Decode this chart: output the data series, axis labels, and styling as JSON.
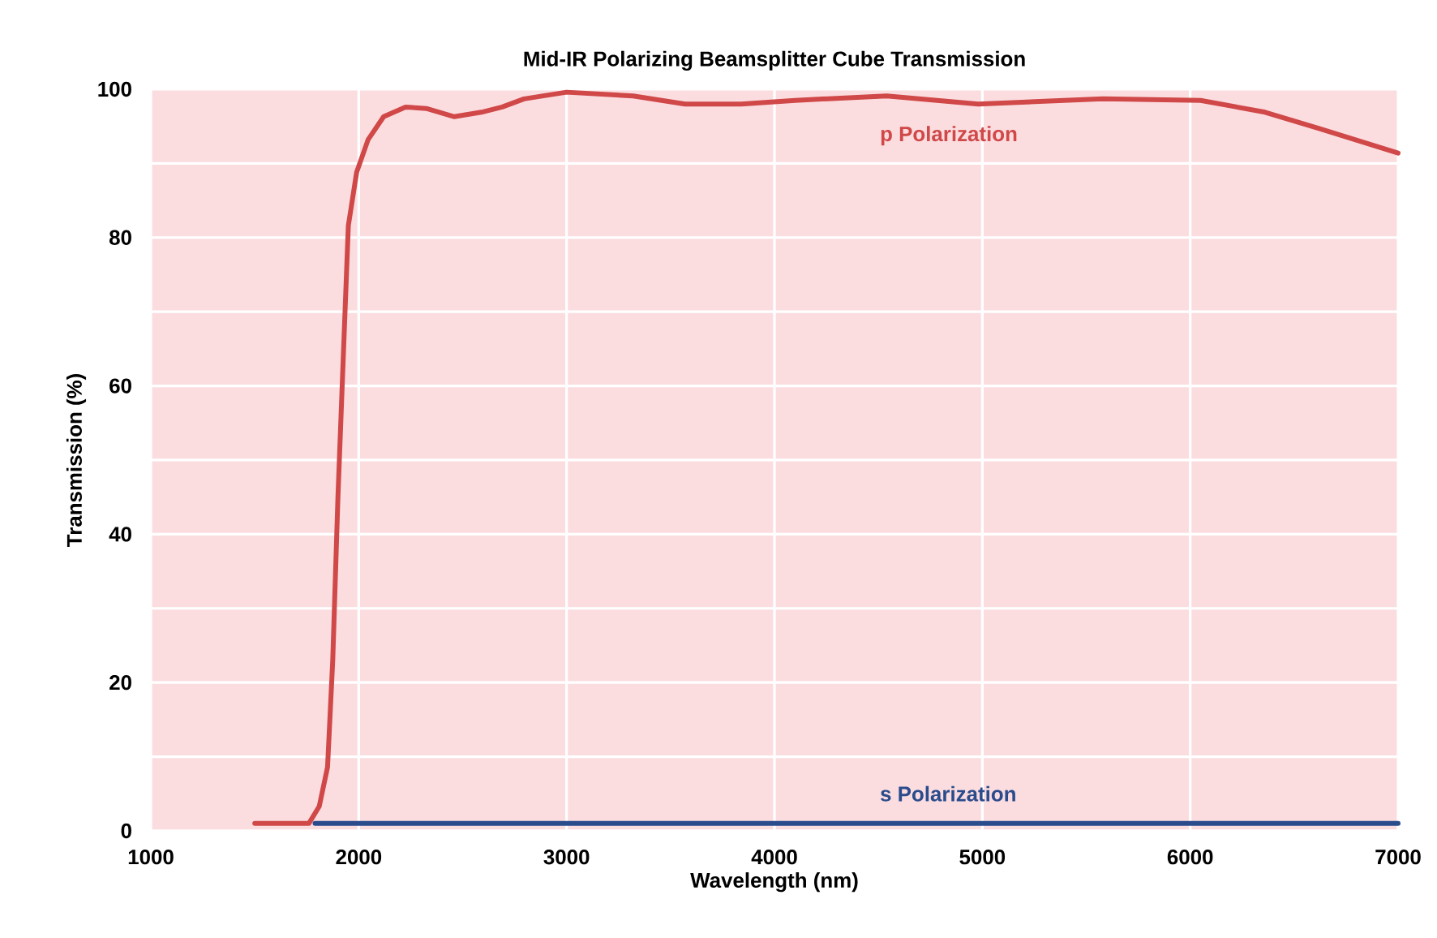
{
  "chart_data": {
    "type": "line",
    "title": "Mid-IR Polarizing Beamsplitter Cube Transmission",
    "xlabel": "Wavelength (nm)",
    "ylabel": "Transmission (%)",
    "xlim": [
      1000,
      7000
    ],
    "ylim": [
      0,
      100
    ],
    "xticks": [
      1000,
      2000,
      3000,
      4000,
      5000,
      6000,
      7000
    ],
    "yticks": [
      0,
      {
        "value": 10,
        "label": null
      },
      20,
      {
        "value": 30,
        "label": null
      },
      40,
      {
        "value": 50,
        "label": null
      },
      60,
      {
        "value": 70,
        "label": null
      },
      80,
      {
        "value": 90,
        "label": null
      },
      100
    ],
    "grid": true,
    "marker": "none",
    "line_style": "solid",
    "series": [
      {
        "name": "p Polarization",
        "color": "#d04848",
        "x": [
          1500,
          1760,
          1810,
          1850,
          1875,
          1900,
          1930,
          1950,
          1990,
          2045,
          2120,
          2225,
          2325,
          2460,
          2590,
          2690,
          2795,
          3000,
          3320,
          3570,
          3840,
          4100,
          4540,
          4980,
          5580,
          6050,
          6360,
          6620,
          7000
        ],
        "values": [
          1,
          1,
          3.3,
          8.6,
          23,
          45,
          67,
          81.6,
          88.8,
          93.2,
          96.3,
          97.6,
          97.4,
          96.3,
          96.9,
          97.6,
          98.7,
          99.6,
          99.1,
          98,
          98,
          98.5,
          99.1,
          98,
          98.7,
          98.5,
          96.9,
          94.7,
          91.4
        ]
      },
      {
        "name": "s Polarization",
        "color": "#2b4c8c",
        "x": [
          1790,
          7000
        ],
        "values": [
          1,
          1
        ]
      }
    ]
  }
}
